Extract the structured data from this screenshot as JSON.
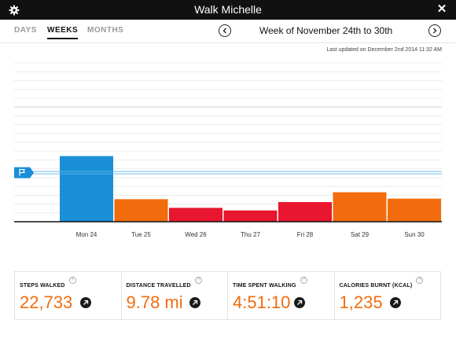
{
  "window": {
    "title": "Walk Michelle",
    "gear_icon": "gear-icon",
    "close_icon": "close-icon",
    "close_glyph": "✕"
  },
  "tabs": [
    {
      "label": "DAYS",
      "active": false
    },
    {
      "label": "WEEKS",
      "active": true
    },
    {
      "label": "MONTHS",
      "active": false
    }
  ],
  "week": {
    "title": "Week of November 24th to 30th"
  },
  "updated": "Last updated on December 2nd 2014 11:32 AM",
  "goal_flag_icon": "flag-icon",
  "chart_data": {
    "type": "bar",
    "categories": [
      "Mon 24",
      "Tue 25",
      "Wed 26",
      "Thu 27",
      "Fri 28",
      "Sat 29",
      "Sun 30"
    ],
    "values": [
      22733,
      7800,
      4800,
      3900,
      6800,
      10200,
      8000
    ],
    "bar_colors": [
      "#1a8fd8",
      "#f26c0d",
      "#e8162f",
      "#e8162f",
      "#e8162f",
      "#f26c0d",
      "#f26c0d"
    ],
    "goal": 17000,
    "ylim": [
      0,
      55000
    ],
    "grid": true
  },
  "stats": [
    {
      "label": "STEPS WALKED",
      "value": "22,733"
    },
    {
      "label": "DISTANCE TRAVELLED",
      "value": "9.78 mi"
    },
    {
      "label": "TIME SPENT WALKING",
      "value": "4:51:10"
    },
    {
      "label": "CALORIES BURNT (KCAL)",
      "value": "1,235"
    }
  ],
  "colors": {
    "accent_orange": "#f26c0d",
    "accent_blue": "#1a8fd8",
    "accent_red": "#e8162f"
  }
}
